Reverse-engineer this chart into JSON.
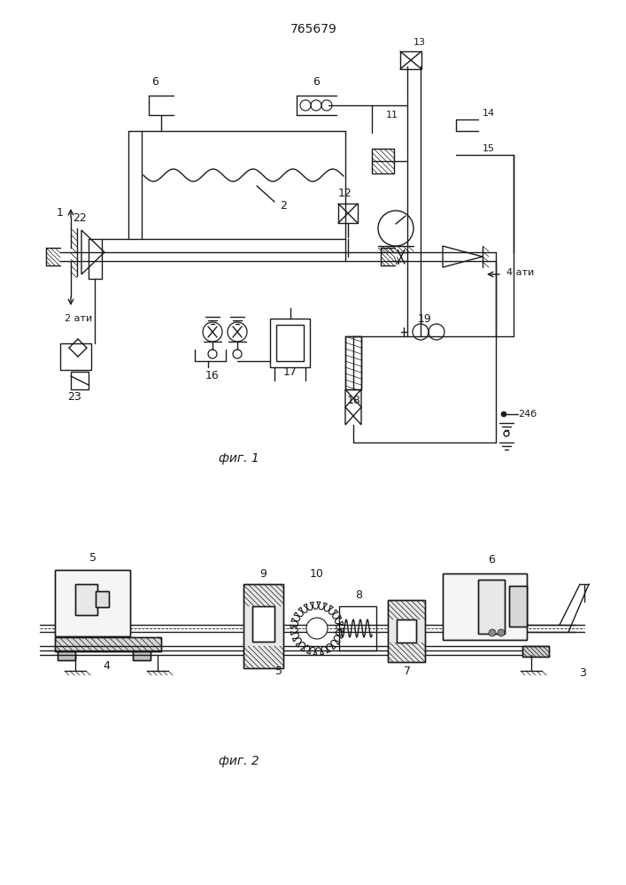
{
  "title": "765679",
  "fig1_label": "фиг. 1",
  "fig2_label": "фиг. 2",
  "bg_color": "#ffffff",
  "line_color": "#1a1a1a",
  "line_width": 1.0
}
